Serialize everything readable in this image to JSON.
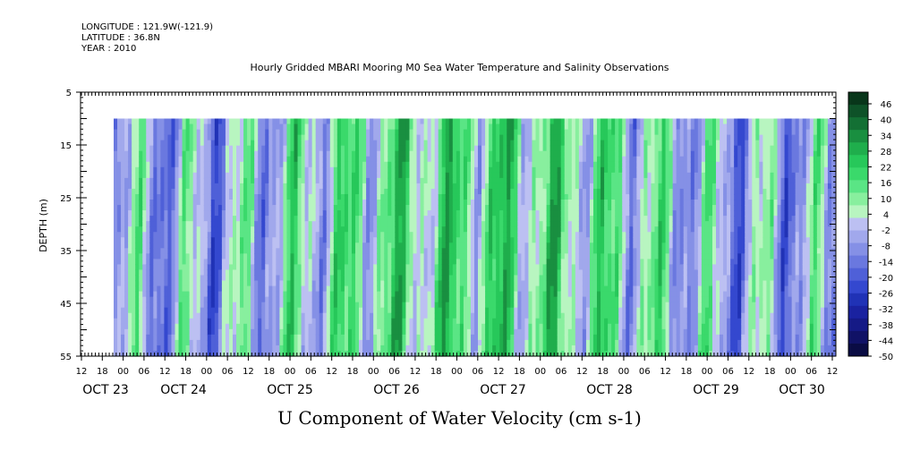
{
  "header": {
    "longitude": "LONGITUDE : 121.9W(-121.9)",
    "latitude": "LATITUDE : 36.8N",
    "year": "YEAR : 2010"
  },
  "chart_data": {
    "type": "heatmap",
    "title": "Hourly Gridded MBARI Mooring M0 Sea Water Temperature and Salinity Observations",
    "xlabel": "U Component of Water Velocity (cm s-1)",
    "ylabel": "DEPTH (m)",
    "ylim": [
      5,
      55
    ],
    "y_ticks": [
      5,
      15,
      25,
      35,
      45,
      55
    ],
    "x_hour_ticks": [
      "12",
      "18",
      "00",
      "06",
      "12",
      "18",
      "00",
      "06",
      "12",
      "18",
      "00",
      "06",
      "12",
      "18",
      "00",
      "06",
      "12",
      "18",
      "00",
      "06",
      "12",
      "18",
      "00",
      "06",
      "12",
      "18",
      "00",
      "06",
      "12",
      "18",
      "00",
      "06",
      "12",
      "18",
      "00",
      "06",
      "12"
    ],
    "x_day_labels": [
      "OCT 23",
      "OCT 24",
      "OCT 25",
      "OCT 26",
      "OCT 27",
      "OCT 28",
      "OCT 29",
      "OCT 30"
    ],
    "data_depth_range": [
      10,
      55
    ],
    "colorbar": {
      "levels": [
        "46",
        "40",
        "34",
        "28",
        "22",
        "16",
        "10",
        "4",
        "-2",
        "-8",
        "-14",
        "-20",
        "-26",
        "-32",
        "-38",
        "-44",
        "-50"
      ],
      "colors": [
        "#08361a",
        "#0e5228",
        "#137034",
        "#198f40",
        "#1fae4c",
        "#27c85a",
        "#3ad96b",
        "#5ae585",
        "#88ef9e",
        "#b8f5c0",
        "#bcc0f2",
        "#a1a8ec",
        "#8590e6",
        "#6a78df",
        "#4f60d8",
        "#3448cf",
        "#2032b6",
        "#1a22a0",
        "#151a86",
        "#101266",
        "#0a0c44"
      ]
    }
  }
}
